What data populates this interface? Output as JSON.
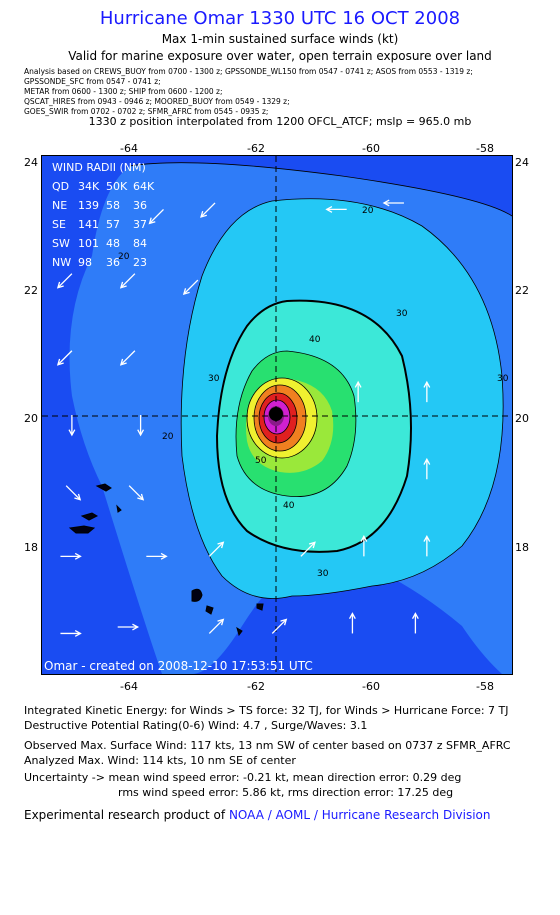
{
  "header": {
    "title": "Hurricane Omar 1330 UTC 16 OCT 2008",
    "subtitle1": "Max 1-min sustained surface winds (kt)",
    "subtitle2": "Valid for marine exposure over water, open terrain exposure over land"
  },
  "analysis_lines": [
    "Analysis based on   CREWS_BUOY from 0700 - 1300 z;   GPSSONDE_WL150 from 0547 - 0741 z;   ASOS from 0553 - 1319 z;",
    "GPSSONDE_SFC from 0547 - 0741 z;",
    "METAR from 0600 - 1300 z;  SHIP from 0600 - 1200 z;",
    "QSCAT_HIRES from 0943 - 0946 z;   MOORED_BUOY from 0549 - 1329 z;",
    "GOES_SWIR from 0702 - 0702 z;   SFMR_AFRC from 0545 - 0935 z;"
  ],
  "interp_line": "1330 z position interpolated from 1200 OFCL_ATCF; mslp = 965.0 mb",
  "axes": {
    "lon_ticks": [
      "-64",
      "-62",
      "-60",
      "-58"
    ],
    "lat_ticks": [
      "24",
      "22",
      "20",
      "18"
    ]
  },
  "wind_radii": {
    "title": "WIND RADII (NM)",
    "header": [
      "QD",
      "34K",
      "50K",
      "64K"
    ],
    "rows": [
      [
        "NE",
        "139",
        "58",
        "36"
      ],
      [
        "SE",
        "141",
        "57",
        "37"
      ],
      [
        "SW",
        "101",
        "48",
        "84"
      ],
      [
        "NW",
        "98",
        "36",
        "23"
      ]
    ]
  },
  "contour_labels": [
    "20",
    "20",
    "20",
    "30",
    "30",
    "30",
    "30",
    "40",
    "40",
    "50"
  ],
  "credit": "Omar - created on 2008-12-10 17:53:51 UTC",
  "info": {
    "ike": "Integrated Kinetic Energy:  for Winds > TS force: 32 TJ,  for Winds > Hurricane Force: 7 TJ",
    "dpr": "Destructive Potential Rating(0-6)   Wind: 4.7 , Surge/Waves: 3.1",
    "observed": "Observed Max. Surface Wind: 117 kts, 13 nm SW of center based on 0737 z SFMR_AFRC",
    "analyzed": "Analyzed Max. Wind: 114 kts, 10 nm SE of center",
    "unc1": "Uncertainty -> mean wind speed error:  -0.21 kt,   mean direction error: 0.29 deg",
    "unc2": "rms wind speed error: 5.86 kt,   rms direction error: 17.25 deg",
    "product_prefix": "Experimental research product of",
    "product_link": "NOAA / AOML / Hurricane Research Division"
  },
  "colors": {
    "bg_blue": "#1a4cf2",
    "light_blue": "#2f7cf8",
    "cyan": "#24c8f5",
    "aqua": "#3ce8d8",
    "green": "#28e070",
    "yellow": "#f0f030",
    "orange": "#f08020",
    "red": "#e02020",
    "magenta": "#d020d0",
    "title_blue": "#1a1aff"
  },
  "wind_vectors": [
    {
      "lon": -63.2,
      "lat": 23.2,
      "dir": "sw"
    },
    {
      "lon": -62.3,
      "lat": 23.3,
      "dir": "sw"
    },
    {
      "lon": -60.0,
      "lat": 23.2,
      "dir": "w"
    },
    {
      "lon": -59.0,
      "lat": 23.3,
      "dir": "w"
    },
    {
      "lon": -64.8,
      "lat": 22.2,
      "dir": "sw"
    },
    {
      "lon": -63.7,
      "lat": 22.2,
      "dir": "sw"
    },
    {
      "lon": -62.6,
      "lat": 22.1,
      "dir": "sw"
    },
    {
      "lon": -64.8,
      "lat": 21.0,
      "dir": "sw"
    },
    {
      "lon": -63.7,
      "lat": 21.0,
      "dir": "sw"
    },
    {
      "lon": -64.8,
      "lat": 20.0,
      "dir": "s"
    },
    {
      "lon": -63.6,
      "lat": 20.0,
      "dir": "s"
    },
    {
      "lon": -59.8,
      "lat": 20.2,
      "dir": "n"
    },
    {
      "lon": -58.6,
      "lat": 20.2,
      "dir": "n"
    },
    {
      "lon": -64.9,
      "lat": 18.9,
      "dir": "se"
    },
    {
      "lon": -63.8,
      "lat": 18.9,
      "dir": "se"
    },
    {
      "lon": -58.6,
      "lat": 19.0,
      "dir": "n"
    },
    {
      "lon": -65.0,
      "lat": 17.8,
      "dir": "e"
    },
    {
      "lon": -63.5,
      "lat": 17.8,
      "dir": "e"
    },
    {
      "lon": -62.4,
      "lat": 17.8,
      "dir": "ne"
    },
    {
      "lon": -60.8,
      "lat": 17.8,
      "dir": "ne"
    },
    {
      "lon": -59.7,
      "lat": 17.8,
      "dir": "n"
    },
    {
      "lon": -58.6,
      "lat": 17.8,
      "dir": "n"
    },
    {
      "lon": -65.0,
      "lat": 16.6,
      "dir": "e"
    },
    {
      "lon": -64.0,
      "lat": 16.7,
      "dir": "e"
    },
    {
      "lon": -62.4,
      "lat": 16.6,
      "dir": "ne"
    },
    {
      "lon": -61.3,
      "lat": 16.6,
      "dir": "ne"
    },
    {
      "lon": -59.9,
      "lat": 16.6,
      "dir": "n"
    },
    {
      "lon": -58.8,
      "lat": 16.6,
      "dir": "n"
    }
  ]
}
